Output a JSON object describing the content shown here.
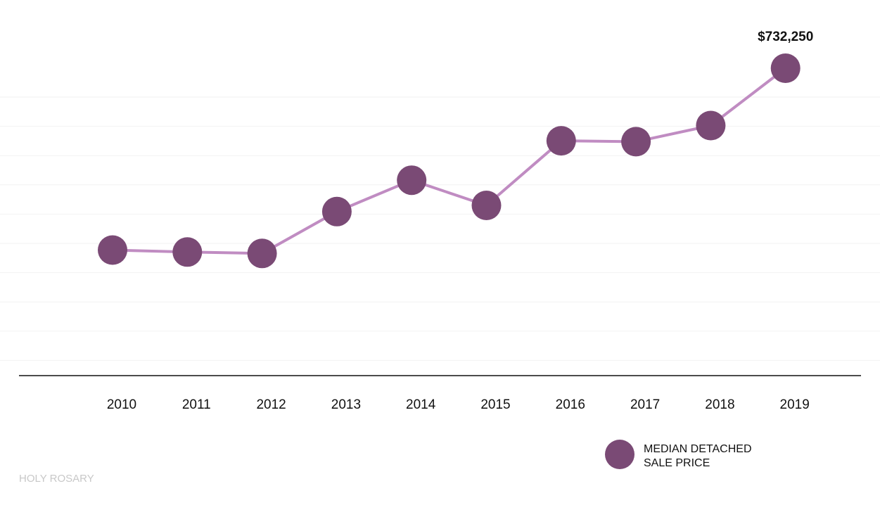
{
  "chart_data": {
    "type": "line",
    "categories": [
      "2010",
      "2011",
      "2012",
      "2013",
      "2014",
      "2015",
      "2016",
      "2017",
      "2018",
      "2019"
    ],
    "series": [
      {
        "name": "MEDIAN DETACHED SALE PRICE",
        "values": [
          541000,
          539000,
          537500,
          581500,
          614500,
          588000,
          656000,
          655000,
          672000,
          732250
        ]
      }
    ],
    "data_labels": [
      {
        "index": 9,
        "text": "$732,250"
      }
    ],
    "legend": {
      "lines": [
        "MEDIAN DETACHED",
        "SALE PRICE"
      ],
      "position": "bottom-right"
    },
    "grid": true,
    "ylim": [
      409000,
      804000
    ],
    "title": "",
    "xlabel": "",
    "ylabel": ""
  },
  "watermark": "HOLY ROSARY",
  "colors": {
    "marker": "#7a4a75",
    "line": "#c08cc2",
    "grid": "#f2f2f2",
    "axis": "#111111",
    "text": "#111111",
    "watermark": "#c8c8c8"
  }
}
